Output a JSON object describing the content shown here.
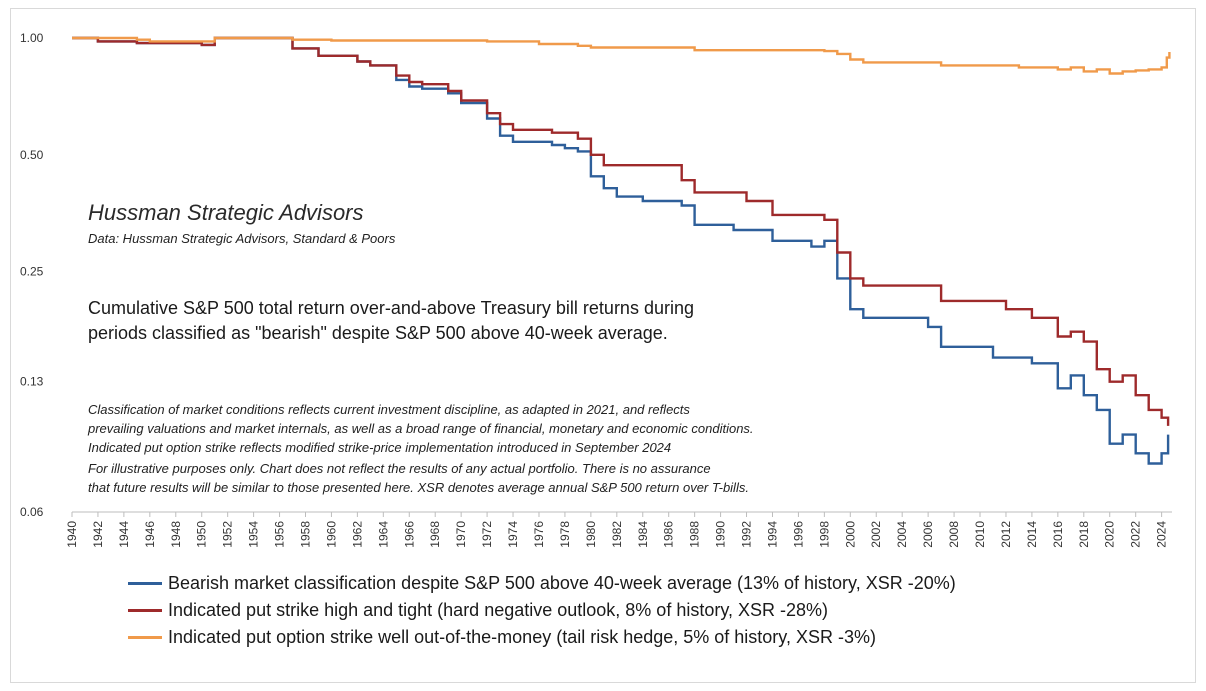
{
  "chart_data": {
    "type": "line",
    "scale": "log",
    "ylim": [
      0.06,
      1.0
    ],
    "xlim": [
      1940,
      2024.8
    ],
    "y_ticks": [
      {
        "value": 1.0,
        "label": "1.00"
      },
      {
        "value": 0.5,
        "label": "0.50"
      },
      {
        "value": 0.25,
        "label": "0.25"
      },
      {
        "value": 0.13,
        "label": "0.13"
      },
      {
        "value": 0.06,
        "label": "0.06"
      }
    ],
    "x_ticks": [
      "1940",
      "1942",
      "1944",
      "1946",
      "1948",
      "1950",
      "1952",
      "1954",
      "1956",
      "1958",
      "1960",
      "1962",
      "1964",
      "1966",
      "1968",
      "1970",
      "1972",
      "1974",
      "1976",
      "1978",
      "1980",
      "1982",
      "1984",
      "1986",
      "1988",
      "1990",
      "1992",
      "1994",
      "1996",
      "1998",
      "2000",
      "2002",
      "2004",
      "2006",
      "2008",
      "2010",
      "2012",
      "2014",
      "2016",
      "2018",
      "2020",
      "2022",
      "2024"
    ],
    "grid": false,
    "legend_position": "bottom",
    "annotations": {
      "brand": "Hussman Strategic Advisors",
      "source": "Data: Hussman Strategic Advisors, Standard & Poors",
      "headline_1": "Cumulative S&P 500 total return over-and-above Treasury bill returns during",
      "headline_2": "periods classified as \"bearish\" despite S&P 500 above 40-week average.",
      "note_1": "Classification of market conditions reflects current investment discipline, as adapted in 2021, and reflects",
      "note_2": "prevailing valuations and market internals, as well as a broad range of financial, monetary and economic conditions.",
      "note_3": "Indicated put option strike reflects modified strike-price implementation introduced in September 2024",
      "note_4": "For illustrative purposes only. Chart does not reflect the results of any actual portfolio. There is no assurance",
      "note_5": "that future results will be similar to those presented here. XSR denotes average annual S&P 500 return over T-bills."
    },
    "series": [
      {
        "name": "Bearish market classification despite S&P 500 above 40-week average (13% of history, XSR -20%)",
        "color": "#2e5f9a",
        "points": [
          [
            1940,
            1.0
          ],
          [
            1942,
            0.98
          ],
          [
            1945,
            0.97
          ],
          [
            1950,
            0.96
          ],
          [
            1951,
            1.0
          ],
          [
            1956,
            1.0
          ],
          [
            1957,
            0.94
          ],
          [
            1959,
            0.9
          ],
          [
            1962,
            0.87
          ],
          [
            1963,
            0.85
          ],
          [
            1965,
            0.78
          ],
          [
            1966,
            0.75
          ],
          [
            1967,
            0.74
          ],
          [
            1969,
            0.72
          ],
          [
            1970,
            0.68
          ],
          [
            1972,
            0.62
          ],
          [
            1973,
            0.56
          ],
          [
            1974,
            0.54
          ],
          [
            1977,
            0.53
          ],
          [
            1978,
            0.52
          ],
          [
            1979,
            0.51
          ],
          [
            1980,
            0.44
          ],
          [
            1981,
            0.41
          ],
          [
            1982,
            0.39
          ],
          [
            1984,
            0.38
          ],
          [
            1987,
            0.37
          ],
          [
            1988,
            0.33
          ],
          [
            1991,
            0.32
          ],
          [
            1994,
            0.3
          ],
          [
            1996,
            0.3
          ],
          [
            1997,
            0.29
          ],
          [
            1998,
            0.3
          ],
          [
            1999,
            0.24
          ],
          [
            2000,
            0.2
          ],
          [
            2001,
            0.19
          ],
          [
            2005,
            0.19
          ],
          [
            2006,
            0.18
          ],
          [
            2007,
            0.16
          ],
          [
            2010,
            0.16
          ],
          [
            2011,
            0.15
          ],
          [
            2014,
            0.145
          ],
          [
            2016,
            0.125
          ],
          [
            2017,
            0.135
          ],
          [
            2018,
            0.12
          ],
          [
            2019,
            0.11
          ],
          [
            2020,
            0.09
          ],
          [
            2021,
            0.095
          ],
          [
            2022,
            0.085
          ],
          [
            2023,
            0.08
          ],
          [
            2024,
            0.085
          ],
          [
            2024.5,
            0.095
          ]
        ]
      },
      {
        "name": "Indicated put strike high and tight (hard negative outlook, 8% of history, XSR -28%)",
        "color": "#9e2a2b",
        "points": [
          [
            1940,
            1.0
          ],
          [
            1942,
            0.98
          ],
          [
            1945,
            0.97
          ],
          [
            1950,
            0.96
          ],
          [
            1951,
            1.0
          ],
          [
            1956,
            1.0
          ],
          [
            1957,
            0.94
          ],
          [
            1959,
            0.9
          ],
          [
            1962,
            0.87
          ],
          [
            1963,
            0.85
          ],
          [
            1965,
            0.8
          ],
          [
            1966,
            0.77
          ],
          [
            1967,
            0.76
          ],
          [
            1969,
            0.73
          ],
          [
            1970,
            0.69
          ],
          [
            1972,
            0.64
          ],
          [
            1973,
            0.6
          ],
          [
            1974,
            0.58
          ],
          [
            1977,
            0.57
          ],
          [
            1979,
            0.55
          ],
          [
            1980,
            0.5
          ],
          [
            1981,
            0.47
          ],
          [
            1986,
            0.47
          ],
          [
            1987,
            0.43
          ],
          [
            1988,
            0.4
          ],
          [
            1992,
            0.38
          ],
          [
            1994,
            0.35
          ],
          [
            1998,
            0.34
          ],
          [
            1999,
            0.28
          ],
          [
            2000,
            0.24
          ],
          [
            2001,
            0.23
          ],
          [
            2006,
            0.23
          ],
          [
            2007,
            0.21
          ],
          [
            2012,
            0.2
          ],
          [
            2014,
            0.19
          ],
          [
            2016,
            0.17
          ],
          [
            2017,
            0.175
          ],
          [
            2018,
            0.165
          ],
          [
            2019,
            0.14
          ],
          [
            2020,
            0.13
          ],
          [
            2021,
            0.135
          ],
          [
            2022,
            0.12
          ],
          [
            2023,
            0.11
          ],
          [
            2024,
            0.105
          ],
          [
            2024.5,
            0.1
          ]
        ]
      },
      {
        "name": "Indicated put option strike well out-of-the-money (tail risk hedge, 5% of history, XSR -3%)",
        "color": "#f09a4a",
        "points": [
          [
            1940,
            1.0
          ],
          [
            1945,
            0.99
          ],
          [
            1946,
            0.98
          ],
          [
            1950,
            0.98
          ],
          [
            1951,
            1.0
          ],
          [
            1956,
            1.0
          ],
          [
            1957,
            0.99
          ],
          [
            1960,
            0.985
          ],
          [
            1972,
            0.98
          ],
          [
            1976,
            0.965
          ],
          [
            1979,
            0.955
          ],
          [
            1980,
            0.945
          ],
          [
            1988,
            0.93
          ],
          [
            1996,
            0.93
          ],
          [
            1998,
            0.925
          ],
          [
            1999,
            0.91
          ],
          [
            2000,
            0.88
          ],
          [
            2001,
            0.865
          ],
          [
            2006,
            0.865
          ],
          [
            2007,
            0.85
          ],
          [
            2011,
            0.85
          ],
          [
            2013,
            0.84
          ],
          [
            2016,
            0.83
          ],
          [
            2017,
            0.84
          ],
          [
            2018,
            0.82
          ],
          [
            2019,
            0.83
          ],
          [
            2020,
            0.81
          ],
          [
            2021,
            0.82
          ],
          [
            2022,
            0.825
          ],
          [
            2023,
            0.83
          ],
          [
            2024,
            0.84
          ],
          [
            2024.4,
            0.89
          ],
          [
            2024.6,
            0.92
          ]
        ]
      }
    ]
  }
}
